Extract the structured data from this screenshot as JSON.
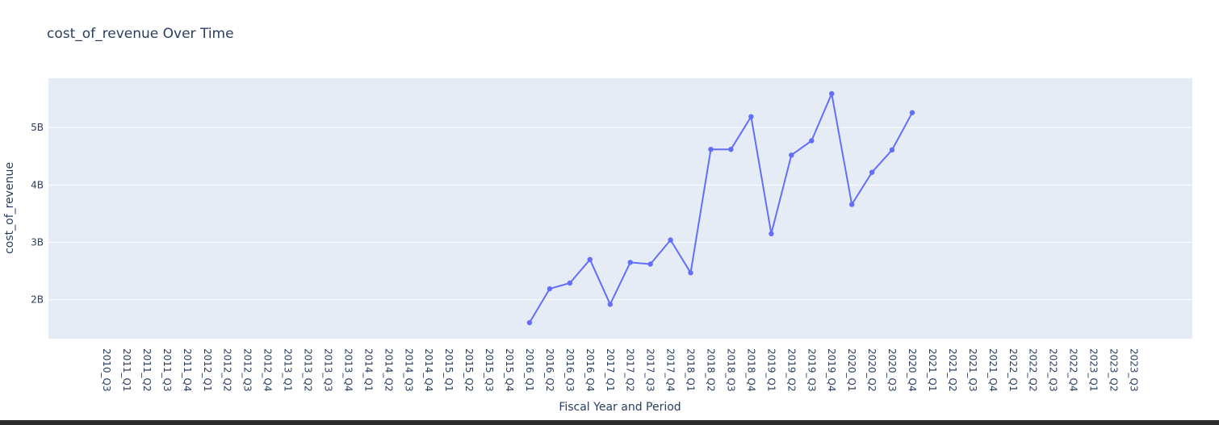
{
  "chart_data": {
    "type": "line",
    "title": "cost_of_revenue Over Time",
    "xlabel": "Fiscal Year and Period",
    "ylabel": "cost_of_revenue",
    "categories": [
      "2010_Q3",
      "2011_Q1",
      "2011_Q2",
      "2011_Q3",
      "2011_Q4",
      "2012_Q1",
      "2012_Q2",
      "2012_Q3",
      "2012_Q4",
      "2013_Q1",
      "2013_Q2",
      "2013_Q3",
      "2013_Q4",
      "2014_Q1",
      "2014_Q2",
      "2014_Q3",
      "2014_Q4",
      "2015_Q1",
      "2015_Q2",
      "2015_Q3",
      "2015_Q4",
      "2016_Q1",
      "2016_Q2",
      "2016_Q3",
      "2016_Q4",
      "2017_Q1",
      "2017_Q2",
      "2017_Q3",
      "2017_Q4",
      "2018_Q1",
      "2018_Q2",
      "2018_Q3",
      "2018_Q4",
      "2019_Q1",
      "2019_Q2",
      "2019_Q3",
      "2019_Q4",
      "2020_Q1",
      "2020_Q2",
      "2020_Q3",
      "2020_Q4",
      "2021_Q1",
      "2021_Q2",
      "2021_Q3",
      "2021_Q4",
      "2022_Q1",
      "2022_Q2",
      "2022_Q3",
      "2022_Q4",
      "2023_Q1",
      "2023_Q2",
      "2023_Q3"
    ],
    "series": [
      {
        "values": [
          null,
          null,
          null,
          null,
          null,
          null,
          null,
          null,
          null,
          null,
          null,
          null,
          null,
          null,
          null,
          null,
          null,
          null,
          null,
          null,
          null,
          1.6,
          2.19,
          2.29,
          2.7,
          1.92,
          2.65,
          2.62,
          3.04,
          2.47,
          4.62,
          4.62,
          5.19,
          3.15,
          4.52,
          4.77,
          5.59,
          3.66,
          4.22,
          4.61,
          5.26,
          null,
          null,
          null,
          null,
          null,
          null,
          null,
          null,
          null,
          null,
          null
        ],
        "color": "#636efa"
      }
    ],
    "ylim": [
      1.32,
      5.86
    ],
    "yticks": [
      2,
      3,
      4,
      5
    ],
    "ytick_labels": [
      "2B",
      "3B",
      "4B",
      "5B"
    ],
    "grid": true,
    "colors": {
      "plot_bg": "#e5ecf6",
      "grid": "#ffffff",
      "text": "#2a3f5f",
      "line": "#636efa"
    }
  }
}
